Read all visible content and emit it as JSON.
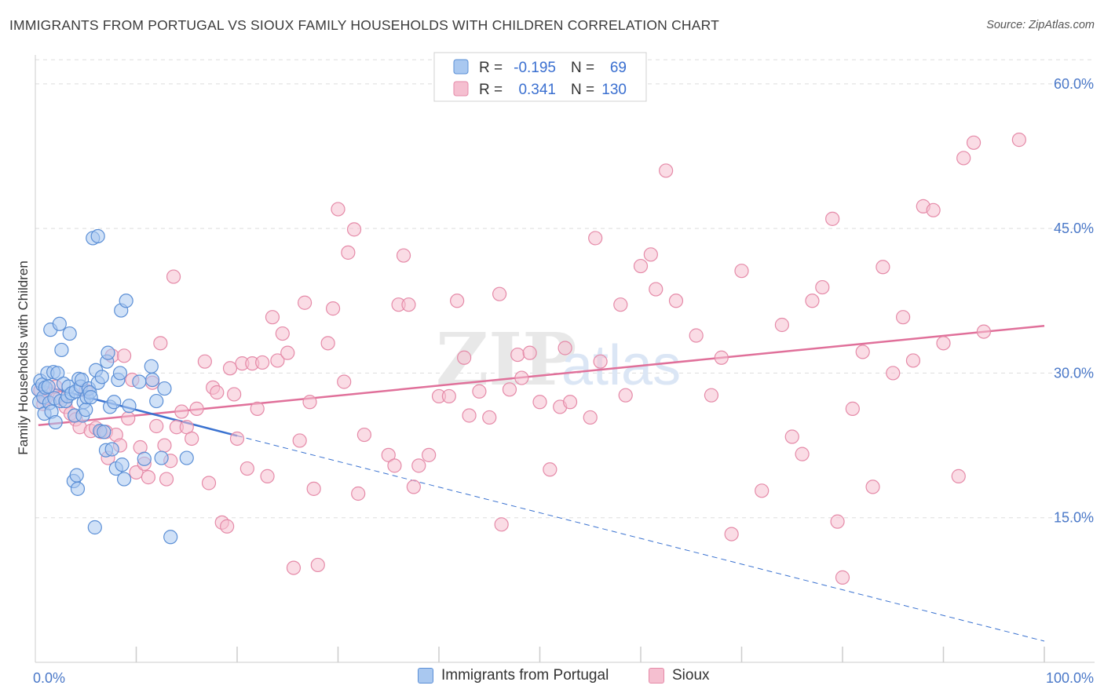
{
  "header": {
    "title": "IMMIGRANTS FROM PORTUGAL VS SIOUX FAMILY HOUSEHOLDS WITH CHILDREN CORRELATION CHART",
    "source": "Source: ZipAtlas.com"
  },
  "watermark": {
    "zip": "ZIP",
    "atlas": "atlas"
  },
  "colors": {
    "blue_fill": "#a9c8f0",
    "blue_stroke": "#5b8fd6",
    "blue_line": "#3a72d0",
    "pink_fill": "#f5bfd0",
    "pink_stroke": "#e58aa8",
    "pink_line": "#e0709a",
    "grid": "#dddddd",
    "tick_text": "#4a78c8"
  },
  "stats_legend": [
    {
      "r_label": "R =",
      "r_value": "-0.195",
      "n_label": "N =",
      "n_value": "69"
    },
    {
      "r_label": "R =",
      "r_value": "0.341",
      "n_label": "N =",
      "n_value": "130"
    }
  ],
  "chart_data": {
    "type": "scatter",
    "title": "IMMIGRANTS FROM PORTUGAL VS SIOUX FAMILY HOUSEHOLDS WITH CHILDREN CORRELATION CHART",
    "xlabel": "",
    "ylabel": "Family Households with Children",
    "xlim": [
      0,
      100
    ],
    "ylim": [
      0,
      63
    ],
    "x_tick_labels": [
      "0.0%",
      "100.0%"
    ],
    "y_ticks": [
      15,
      30,
      45,
      60
    ],
    "y_tick_labels": [
      "15.0%",
      "30.0%",
      "45.0%",
      "60.0%"
    ],
    "grid": "horizontal dashed",
    "legend_position": "top-center",
    "series": [
      {
        "name": "Immigrants from Portugal",
        "color": "#a9c8f0",
        "trendline": {
          "x": [
            0.3,
            20
          ],
          "y": [
            28.8,
            23.5
          ]
        },
        "trendline_extended": {
          "x": [
            20,
            100
          ],
          "y": [
            23.5,
            2.2
          ]
        },
        "points": [
          [
            0.3,
            28.3
          ],
          [
            0.4,
            27.0
          ],
          [
            0.5,
            29.2
          ],
          [
            0.7,
            28.8
          ],
          [
            0.8,
            27.5
          ],
          [
            0.9,
            25.8
          ],
          [
            1.0,
            28.5
          ],
          [
            1.2,
            30.0
          ],
          [
            1.3,
            28.6
          ],
          [
            1.4,
            26.9
          ],
          [
            1.5,
            34.5
          ],
          [
            1.6,
            26.0
          ],
          [
            1.8,
            30.1
          ],
          [
            1.9,
            27.4
          ],
          [
            2.0,
            24.9
          ],
          [
            2.2,
            30.0
          ],
          [
            2.4,
            35.1
          ],
          [
            2.5,
            27.1
          ],
          [
            2.6,
            32.4
          ],
          [
            2.8,
            28.9
          ],
          [
            3.0,
            27.1
          ],
          [
            3.2,
            27.6
          ],
          [
            3.3,
            28.6
          ],
          [
            3.4,
            34.1
          ],
          [
            3.6,
            27.9
          ],
          [
            3.8,
            18.8
          ],
          [
            3.9,
            25.6
          ],
          [
            4.0,
            28.1
          ],
          [
            4.1,
            19.4
          ],
          [
            4.2,
            18.0
          ],
          [
            4.3,
            29.4
          ],
          [
            4.5,
            28.6
          ],
          [
            4.6,
            29.3
          ],
          [
            4.7,
            25.6
          ],
          [
            4.8,
            27.0
          ],
          [
            5.0,
            26.2
          ],
          [
            5.1,
            27.5
          ],
          [
            5.9,
            14.0
          ],
          [
            5.3,
            28.4
          ],
          [
            5.4,
            28.0
          ],
          [
            5.5,
            27.5
          ],
          [
            6.0,
            30.3
          ],
          [
            6.2,
            29.0
          ],
          [
            5.7,
            44.0
          ],
          [
            6.2,
            44.2
          ],
          [
            6.4,
            24.0
          ],
          [
            6.6,
            29.6
          ],
          [
            6.8,
            23.9
          ],
          [
            7.0,
            22.0
          ],
          [
            7.1,
            31.2
          ],
          [
            7.2,
            32.1
          ],
          [
            7.4,
            26.5
          ],
          [
            7.6,
            22.1
          ],
          [
            7.8,
            27.0
          ],
          [
            8.0,
            20.1
          ],
          [
            8.2,
            29.3
          ],
          [
            8.4,
            30.0
          ],
          [
            8.5,
            36.5
          ],
          [
            8.6,
            20.5
          ],
          [
            8.8,
            19.0
          ],
          [
            9.0,
            37.5
          ],
          [
            9.3,
            26.6
          ],
          [
            10.3,
            29.1
          ],
          [
            10.8,
            21.1
          ],
          [
            11.5,
            30.7
          ],
          [
            11.6,
            29.3
          ],
          [
            12.0,
            27.1
          ],
          [
            12.5,
            21.2
          ],
          [
            12.8,
            28.4
          ],
          [
            13.4,
            13.0
          ],
          [
            15.0,
            21.2
          ]
        ]
      },
      {
        "name": "Sioux",
        "color": "#f5bfd0",
        "trendline": {
          "x": [
            0.3,
            100
          ],
          "y": [
            24.6,
            34.9
          ]
        },
        "points": [
          [
            0.5,
            28.2
          ],
          [
            0.8,
            26.8
          ],
          [
            1.0,
            27.4
          ],
          [
            1.2,
            28.3
          ],
          [
            2.0,
            28.6
          ],
          [
            2.4,
            27.4
          ],
          [
            3.0,
            26.5
          ],
          [
            3.5,
            25.8
          ],
          [
            4.0,
            25.2
          ],
          [
            4.4,
            24.4
          ],
          [
            5.0,
            28.2
          ],
          [
            5.5,
            24.0
          ],
          [
            6.0,
            24.3
          ],
          [
            6.5,
            23.9
          ],
          [
            7.0,
            23.9
          ],
          [
            7.2,
            21.2
          ],
          [
            7.6,
            31.8
          ],
          [
            8.0,
            23.6
          ],
          [
            8.4,
            22.5
          ],
          [
            8.8,
            31.8
          ],
          [
            9.2,
            25.3
          ],
          [
            9.6,
            29.3
          ],
          [
            10.0,
            19.7
          ],
          [
            10.4,
            22.3
          ],
          [
            10.8,
            20.6
          ],
          [
            11.2,
            19.2
          ],
          [
            11.6,
            29.0
          ],
          [
            12.0,
            24.5
          ],
          [
            12.4,
            33.1
          ],
          [
            12.8,
            22.5
          ],
          [
            13.0,
            19.0
          ],
          [
            13.4,
            20.9
          ],
          [
            13.7,
            40.0
          ],
          [
            14.0,
            24.4
          ],
          [
            14.5,
            26.0
          ],
          [
            15.0,
            24.4
          ],
          [
            15.5,
            23.2
          ],
          [
            16.0,
            26.3
          ],
          [
            16.8,
            31.2
          ],
          [
            17.2,
            18.6
          ],
          [
            17.6,
            28.5
          ],
          [
            18.0,
            28.0
          ],
          [
            18.5,
            14.5
          ],
          [
            19.0,
            14.1
          ],
          [
            19.3,
            30.5
          ],
          [
            19.7,
            27.8
          ],
          [
            20.0,
            23.2
          ],
          [
            20.5,
            31.0
          ],
          [
            21.0,
            20.1
          ],
          [
            21.5,
            31.0
          ],
          [
            22.0,
            26.3
          ],
          [
            22.5,
            31.1
          ],
          [
            23.0,
            19.3
          ],
          [
            23.5,
            35.8
          ],
          [
            24.0,
            31.3
          ],
          [
            24.5,
            34.1
          ],
          [
            25.0,
            32.1
          ],
          [
            25.6,
            9.8
          ],
          [
            26.2,
            23.0
          ],
          [
            26.7,
            37.3
          ],
          [
            27.2,
            27.0
          ],
          [
            27.6,
            18.0
          ],
          [
            28.0,
            10.1
          ],
          [
            29.0,
            33.1
          ],
          [
            29.5,
            36.7
          ],
          [
            30.0,
            47.0
          ],
          [
            30.6,
            29.1
          ],
          [
            31.0,
            42.5
          ],
          [
            31.6,
            44.9
          ],
          [
            32.0,
            17.5
          ],
          [
            32.6,
            23.6
          ],
          [
            35.0,
            21.5
          ],
          [
            35.6,
            20.4
          ],
          [
            36.0,
            37.1
          ],
          [
            36.5,
            42.2
          ],
          [
            37.0,
            37.1
          ],
          [
            37.5,
            18.2
          ],
          [
            38.0,
            20.4
          ],
          [
            39.0,
            21.5
          ],
          [
            40.0,
            27.6
          ],
          [
            41.0,
            27.6
          ],
          [
            41.8,
            37.5
          ],
          [
            42.5,
            31.6
          ],
          [
            43.0,
            25.6
          ],
          [
            44.0,
            28.1
          ],
          [
            45.0,
            25.4
          ],
          [
            46.0,
            38.2
          ],
          [
            46.2,
            14.3
          ],
          [
            47.0,
            28.3
          ],
          [
            47.8,
            31.9
          ],
          [
            48.2,
            29.5
          ],
          [
            49.0,
            32.1
          ],
          [
            50.0,
            27.0
          ],
          [
            51.0,
            20.0
          ],
          [
            52.0,
            26.5
          ],
          [
            52.5,
            32.6
          ],
          [
            53.0,
            27.0
          ],
          [
            55.0,
            25.4
          ],
          [
            55.5,
            44.0
          ],
          [
            56.0,
            31.2
          ],
          [
            58.0,
            37.1
          ],
          [
            58.5,
            27.7
          ],
          [
            60.0,
            41.1
          ],
          [
            61.0,
            42.3
          ],
          [
            61.5,
            38.7
          ],
          [
            62.5,
            51.0
          ],
          [
            63.5,
            37.5
          ],
          [
            65.5,
            33.9
          ],
          [
            67.0,
            27.7
          ],
          [
            68.0,
            31.6
          ],
          [
            69.0,
            13.3
          ],
          [
            70.0,
            40.6
          ],
          [
            72.0,
            17.8
          ],
          [
            74.0,
            35.0
          ],
          [
            75.0,
            23.4
          ],
          [
            76.0,
            21.6
          ],
          [
            77.0,
            37.5
          ],
          [
            78.0,
            38.9
          ],
          [
            79.0,
            46.0
          ],
          [
            79.5,
            14.6
          ],
          [
            80.0,
            8.8
          ],
          [
            81.0,
            26.3
          ],
          [
            82.0,
            32.2
          ],
          [
            83.0,
            18.2
          ],
          [
            84.0,
            41.0
          ],
          [
            85.0,
            30.0
          ],
          [
            86.0,
            35.8
          ],
          [
            87.0,
            31.3
          ],
          [
            88.0,
            47.3
          ],
          [
            89.0,
            46.9
          ],
          [
            90.0,
            33.1
          ],
          [
            91.5,
            19.3
          ],
          [
            92.0,
            52.3
          ],
          [
            93.0,
            53.9
          ],
          [
            94.0,
            34.3
          ],
          [
            97.5,
            54.2
          ]
        ]
      }
    ]
  },
  "bottom_legend": [
    {
      "label": "Immigrants from Portugal"
    },
    {
      "label": "Sioux"
    }
  ]
}
